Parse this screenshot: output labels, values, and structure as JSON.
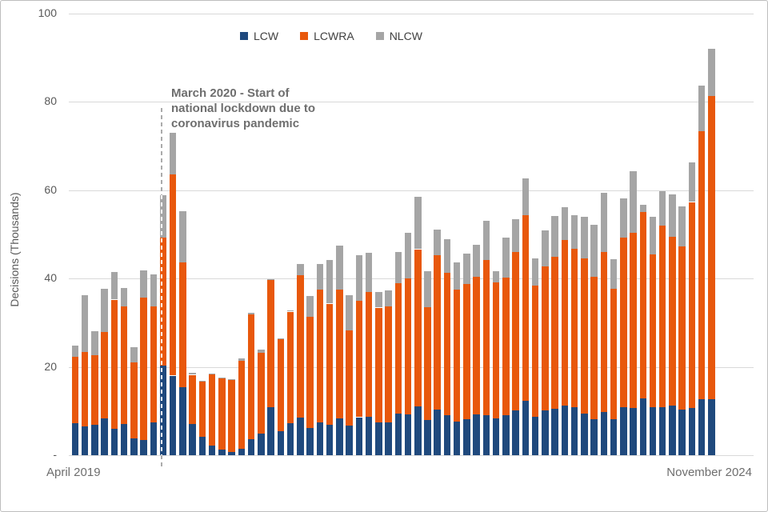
{
  "chart_data": {
    "type": "bar",
    "stacked": true,
    "ylabel": "Decisions (Thousands)",
    "x_start_label": "April 2019",
    "x_end_label": "November 2024",
    "ylim": [
      0,
      100
    ],
    "grid": true,
    "legend_position": "top",
    "y_ticks": [
      {
        "label": "100",
        "value": 100
      },
      {
        "label": "80",
        "value": 80
      },
      {
        "label": "60",
        "value": 60
      },
      {
        "label": "40",
        "value": 40
      },
      {
        "label": "20",
        "value": 20
      },
      {
        "label": "-",
        "value": 0
      }
    ],
    "annotation": {
      "lines": [
        "March 2020 - Start of",
        "national lockdown due to",
        "coronavirus pandemic"
      ],
      "dashed_line_bar_index": 9
    },
    "series": [
      {
        "name": "LCW",
        "color": "#1F497D",
        "values": [
          7.2,
          6.5,
          6.9,
          8.3,
          6.0,
          7.1,
          3.9,
          3.5,
          7.5,
          20.2,
          18.0,
          15.4,
          7.0,
          4.2,
          2.1,
          1.3,
          0.8,
          1.4,
          3.6,
          4.9,
          10.8,
          5.4,
          7.2,
          8.5,
          6.2,
          7.5,
          6.8,
          8.3,
          6.7,
          8.6,
          8.7,
          7.4,
          7.5,
          9.5,
          9.3,
          11.0,
          8.0,
          10.3,
          9.0,
          7.6,
          8.2,
          9.3,
          9.0,
          8.3,
          9.1,
          10.1,
          12.3,
          8.7,
          10.1,
          10.5,
          11.3,
          10.8,
          9.4,
          8.2,
          9.8,
          8.1,
          10.9,
          10.7,
          12.8,
          10.8,
          10.9,
          11.3,
          10.3,
          10.7,
          12.6,
          12.6
        ]
      },
      {
        "name": "LCWRA",
        "color": "#E8580C",
        "values": [
          15.0,
          16.9,
          15.7,
          19.6,
          29.2,
          26.6,
          17.1,
          32.1,
          26.1,
          29.0,
          45.5,
          28.3,
          11.2,
          12.4,
          16.2,
          16.1,
          16.3,
          20.0,
          28.3,
          18.3,
          28.8,
          20.9,
          25.3,
          32.3,
          25.2,
          29.9,
          27.5,
          29.2,
          21.5,
          26.4,
          28.2,
          26.0,
          26.1,
          29.5,
          30.7,
          35.6,
          25.5,
          35.0,
          32.3,
          29.8,
          30.6,
          31.1,
          35.2,
          30.8,
          31.1,
          35.9,
          42.0,
          29.6,
          32.7,
          34.4,
          37.4,
          35.9,
          35.2,
          32.2,
          36.2,
          29.5,
          38.3,
          39.7,
          42.2,
          34.7,
          41.0,
          38.2,
          37.0,
          46.6,
          60.7,
          68.7
        ]
      },
      {
        "name": "NLCW",
        "color": "#A5A5A5",
        "values": [
          2.7,
          12.8,
          5.4,
          9.8,
          6.2,
          4.1,
          3.5,
          6.3,
          7.4,
          9.6,
          9.5,
          11.5,
          0.4,
          0.2,
          0.2,
          0.1,
          0.1,
          0.6,
          0.4,
          0.7,
          0.3,
          0.2,
          0.2,
          2.4,
          4.7,
          5.8,
          9.8,
          10.0,
          8.0,
          10.2,
          8.9,
          3.6,
          3.7,
          7.0,
          10.3,
          11.9,
          8.2,
          5.8,
          7.5,
          6.3,
          6.9,
          7.2,
          8.9,
          2.5,
          9.1,
          7.4,
          8.3,
          6.3,
          8.0,
          9.2,
          7.5,
          7.6,
          9.4,
          11.8,
          13.4,
          6.8,
          8.9,
          13.8,
          1.6,
          8.5,
          7.8,
          9.5,
          9.0,
          8.9,
          10.3,
          10.6
        ]
      }
    ],
    "colors": {
      "grid": "#D9D9D9",
      "tick_text": "#595959",
      "axis_label_text": "#6E6E6E",
      "annotation_text": "#6E6E6E",
      "dashed_line": "#ABABAB"
    }
  }
}
